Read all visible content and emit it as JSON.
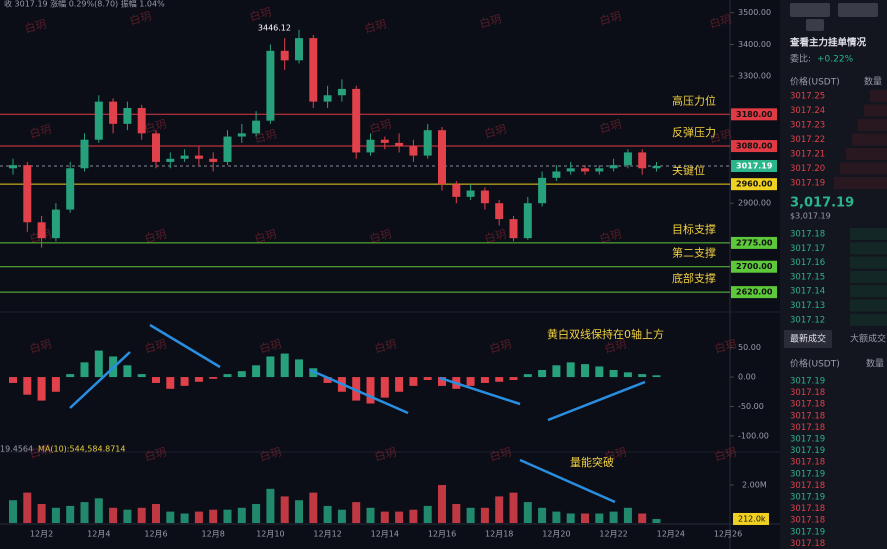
{
  "header": {
    "quote": "收 3017.19  涨幅 0.29%(8.70)  振幅 1.04%",
    "volume_info": "19.4564",
    "volume_ma": "MA(10):544,584.8714"
  },
  "watermark": "白玥",
  "chart_data": {
    "type": "candlestick",
    "categories": [
      null,
      null,
      "12月2",
      null,
      null,
      null,
      "12月4",
      null,
      null,
      null,
      "12月6",
      null,
      null,
      null,
      "12月8",
      null,
      null,
      null,
      "12月10",
      null,
      null,
      null,
      "12月12",
      null,
      null,
      null,
      "12月14",
      null,
      null,
      null,
      "12月16",
      null,
      null,
      null,
      "12月18",
      null,
      null,
      null,
      "12月20",
      null,
      null,
      null,
      "12月22",
      null,
      null,
      null
    ],
    "future_categories": [
      "12月24",
      "12月26"
    ],
    "open": [
      3010,
      3020,
      2840,
      2790,
      2880,
      3010,
      3100,
      3220,
      3150,
      3200,
      3120,
      3030,
      3040,
      3050,
      3040,
      3030,
      3110,
      3120,
      3160,
      3380,
      3350,
      3420,
      3220,
      3240,
      3260,
      3060,
      3100,
      3090,
      3080,
      3050,
      3130,
      2960,
      2920,
      2940,
      2900,
      2850,
      2790,
      2900,
      2980,
      3000,
      3010,
      3000,
      3010,
      3020,
      3060,
      3010
    ],
    "high": [
      3040,
      3030,
      2860,
      2900,
      3030,
      3120,
      3240,
      3230,
      3220,
      3210,
      3130,
      3060,
      3070,
      3080,
      3060,
      3130,
      3150,
      3190,
      3400,
      3420,
      3446.12,
      3430,
      3270,
      3290,
      3270,
      3120,
      3110,
      3120,
      3100,
      3150,
      3140,
      2970,
      2960,
      2950,
      2910,
      2860,
      2920,
      3000,
      3020,
      3030,
      3020,
      3020,
      3040,
      3070,
      3070,
      3030
    ],
    "low": [
      2990,
      2810,
      2760,
      2780,
      2870,
      3000,
      3090,
      3120,
      3130,
      3100,
      3010,
      3010,
      3030,
      3020,
      3000,
      3020,
      3090,
      3110,
      3150,
      3320,
      3340,
      3200,
      3200,
      3220,
      3040,
      3050,
      3070,
      3060,
      3030,
      3040,
      2940,
      2900,
      2910,
      2880,
      2830,
      2780,
      2785,
      2890,
      2970,
      2990,
      2990,
      2990,
      3000,
      3010,
      2990,
      3000
    ],
    "close": [
      3020,
      2840,
      2790,
      2880,
      3010,
      3100,
      3220,
      3150,
      3200,
      3120,
      3030,
      3040,
      3050,
      3040,
      3030,
      3110,
      3120,
      3160,
      3380,
      3350,
      3420,
      3220,
      3240,
      3260,
      3060,
      3100,
      3090,
      3080,
      3050,
      3130,
      2960,
      2920,
      2940,
      2900,
      2850,
      2790,
      2900,
      2980,
      3000,
      3010,
      3000,
      3010,
      3020,
      3060,
      3010,
      3017.19
    ],
    "up_color": "#26a17b",
    "down_color": "#e0414a",
    "ylim": [
      2570,
      3540
    ],
    "yticks": [
      {
        "value": 3500,
        "label": "3500.00"
      },
      {
        "value": 3400,
        "label": "3400.00"
      },
      {
        "value": 3300,
        "label": "3300.00"
      },
      {
        "value": 2900,
        "label": "2900.00"
      }
    ],
    "levels": [
      {
        "name": "高压力位",
        "value": 3180,
        "label": "3180.00",
        "color": "#e03a45"
      },
      {
        "name": "反弹压力",
        "value": 3080,
        "label": "3080.00",
        "color": "#e03a45"
      },
      {
        "name": "关键位",
        "value": 2960,
        "label": "2960.00",
        "color": "#f0d020"
      },
      {
        "name": "目标支撑",
        "value": 2775,
        "label": "2775.00",
        "color": "#5cc83a"
      },
      {
        "name": "第二支撑",
        "value": 2700,
        "label": "2700.00",
        "color": "#5cc83a"
      },
      {
        "name": "底部支撑",
        "value": 2620,
        "label": "2620.00",
        "color": "#5cc83a"
      }
    ],
    "last_price": {
      "value": 3017.19,
      "label": "3017.19",
      "color": "#2bb58a"
    },
    "annotations": {
      "high": "3446.12",
      "macd": "黄白双线保持在0轴上方",
      "volume": "量能突破"
    },
    "macd": {
      "values": [
        -10,
        -30,
        -40,
        -25,
        5,
        25,
        45,
        35,
        20,
        5,
        -10,
        -20,
        -15,
        -8,
        -3,
        5,
        10,
        20,
        35,
        40,
        30,
        15,
        -10,
        -25,
        -40,
        -45,
        -35,
        -25,
        -15,
        -5,
        -15,
        -20,
        -15,
        -10,
        -8,
        -5,
        5,
        12,
        20,
        25,
        22,
        18,
        12,
        8,
        5,
        3
      ],
      "ylim": [
        -124,
        97
      ],
      "yticks": [
        {
          "value": 50,
          "label": "50.00"
        },
        {
          "value": 0,
          "label": "0.00"
        },
        {
          "value": -50,
          "label": "-50.00"
        },
        {
          "value": -100,
          "label": "-100.00"
        }
      ]
    },
    "volume": {
      "values": [
        1200000,
        1600000,
        1000000,
        800000,
        900000,
        1100000,
        1300000,
        800000,
        700000,
        800000,
        1000000,
        600000,
        500000,
        600000,
        700000,
        700000,
        800000,
        1000000,
        1800000,
        1400000,
        1200000,
        1600000,
        900000,
        700000,
        1100000,
        800000,
        600000,
        600000,
        700000,
        900000,
        2000000,
        1000000,
        800000,
        800000,
        1400000,
        1600000,
        1100000,
        800000,
        600000,
        500000,
        500000,
        500000,
        600000,
        800000,
        500000,
        212000
      ],
      "ylim": [
        0,
        3580000
      ],
      "yticks": [
        {
          "value": 2000000,
          "label": "2.00M"
        }
      ],
      "last_value_label": "212.0k"
    }
  },
  "order_book": {
    "title": "查看主力挂单情况",
    "ratio_label": "委比:",
    "ratio": "+0.22%",
    "price_header": "价格(USDT)",
    "qty_header": "数量",
    "asks": [
      "3017.25",
      "3017.24",
      "3017.23",
      "3017.22",
      "3017.21",
      "3017.20",
      "3017.19"
    ],
    "last": "3,017.19",
    "last_usd": "$3,017.19",
    "bids": [
      "3017.18",
      "3017.17",
      "3017.16",
      "3017.15",
      "3017.14",
      "3017.13",
      "3017.12"
    ]
  },
  "trades": {
    "tabs": [
      "最新成交",
      "大额成交"
    ],
    "price_header": "价格(USDT)",
    "qty_header": "数量",
    "rows": [
      {
        "price": "3017.19",
        "side": "buy"
      },
      {
        "price": "3017.18",
        "side": "sell"
      },
      {
        "price": "3017.18",
        "side": "sell"
      },
      {
        "price": "3017.18",
        "side": "sell"
      },
      {
        "price": "3017.18",
        "side": "sell"
      },
      {
        "price": "3017.19",
        "side": "buy"
      },
      {
        "price": "3017.19",
        "side": "buy"
      },
      {
        "price": "3017.18",
        "side": "sell"
      },
      {
        "price": "3017.19",
        "side": "buy"
      },
      {
        "price": "3017.18",
        "side": "sell"
      },
      {
        "price": "3017.19",
        "side": "buy"
      },
      {
        "price": "3017.18",
        "side": "sell"
      },
      {
        "price": "3017.18",
        "side": "sell"
      },
      {
        "price": "3017.19",
        "side": "buy"
      },
      {
        "price": "3017.18",
        "side": "sell"
      }
    ]
  }
}
